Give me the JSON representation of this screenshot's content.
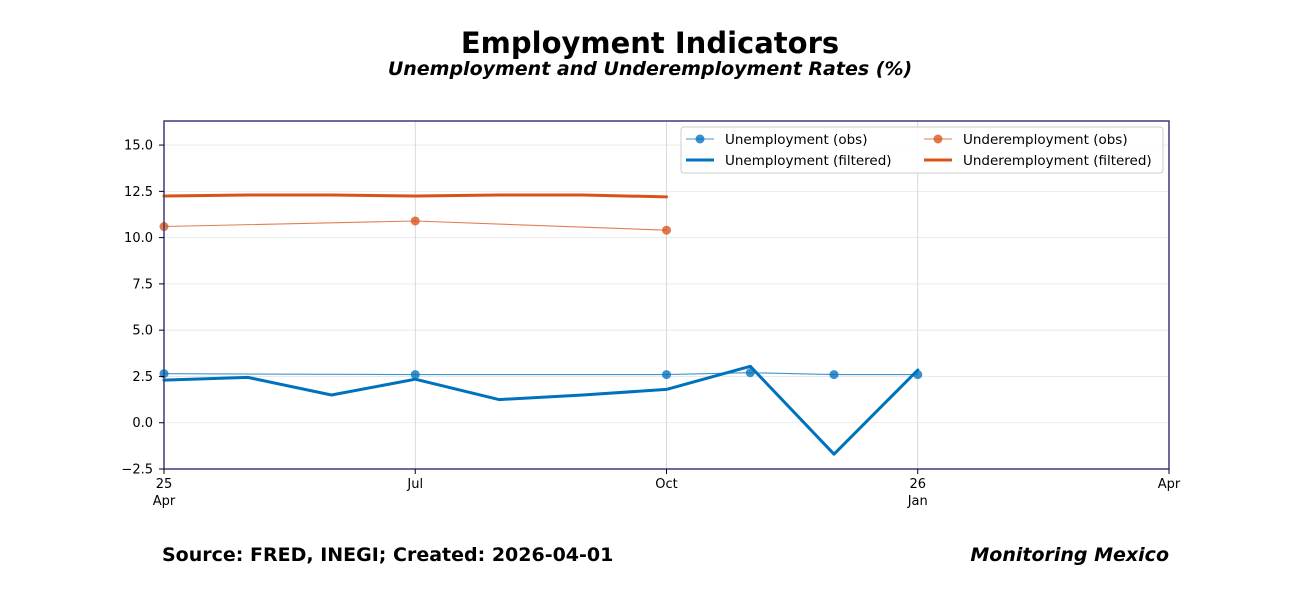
{
  "header": {
    "title": "Employment Indicators",
    "subtitle": "Unemployment and Underemployment Rates (%)"
  },
  "footer": {
    "source": "Source: FRED, INEGI; Created: 2026-04-01",
    "brand": "Monitoring Mexico"
  },
  "colors": {
    "unemployment": "#0072bd",
    "underemployment": "#d95319",
    "frame": "#3c3c7c"
  },
  "chart_data": {
    "type": "line",
    "title": "Employment Indicators",
    "subtitle": "Unemployment and Underemployment Rates (%)",
    "xlabel": "",
    "ylabel": "",
    "x_unit": "months since 2025-04-01",
    "xlim": [
      0,
      12
    ],
    "ylim": [
      -2.5,
      16.3
    ],
    "grid": true,
    "legend_position": "top-right",
    "x_ticks": [
      {
        "x": 0,
        "labels": [
          "25",
          "Apr"
        ]
      },
      {
        "x": 3,
        "labels": [
          "Jul"
        ]
      },
      {
        "x": 6,
        "labels": [
          "Oct"
        ]
      },
      {
        "x": 9,
        "labels": [
          "26",
          "Jan"
        ]
      },
      {
        "x": 12,
        "labels": [
          "Apr"
        ]
      }
    ],
    "y_ticks": [
      -2.5,
      0.0,
      2.5,
      5.0,
      7.5,
      10.0,
      12.5,
      15.0
    ],
    "y_tick_labels": [
      "−2.5",
      "0.0",
      "2.5",
      "5.0",
      "7.5",
      "10.0",
      "12.5",
      "15.0"
    ],
    "series": [
      {
        "name": "Unemployment (obs)",
        "style": "obs",
        "color_key": "unemployment",
        "x": [
          0,
          3,
          6,
          7,
          8,
          9
        ],
        "values": [
          2.65,
          2.6,
          2.6,
          2.7,
          2.6,
          2.6
        ]
      },
      {
        "name": "Unemployment (filtered)",
        "style": "filtered",
        "color_key": "unemployment",
        "x": [
          0,
          1,
          2,
          3,
          4,
          5,
          6,
          7,
          8,
          9
        ],
        "values": [
          2.3,
          2.45,
          1.5,
          2.35,
          1.25,
          1.5,
          1.8,
          3.05,
          -1.7,
          2.85
        ]
      },
      {
        "name": "Underemployment (obs)",
        "style": "obs",
        "color_key": "underemployment",
        "x": [
          0,
          3,
          6
        ],
        "values": [
          10.6,
          10.9,
          10.4
        ]
      },
      {
        "name": "Underemployment (filtered)",
        "style": "filtered",
        "color_key": "underemployment",
        "x": [
          0,
          1,
          2,
          3,
          4,
          5,
          6
        ],
        "values": [
          12.25,
          12.3,
          12.3,
          12.25,
          12.3,
          12.3,
          12.2
        ]
      }
    ]
  }
}
